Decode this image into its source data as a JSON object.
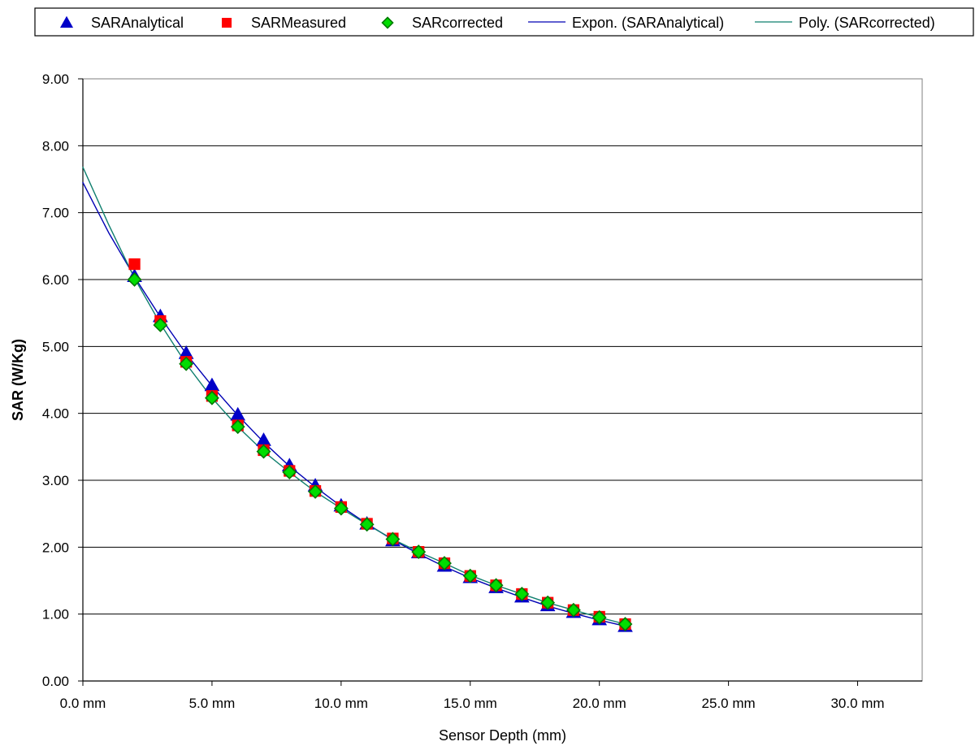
{
  "chart_data": {
    "type": "scatter",
    "title": "",
    "xlabel": "Sensor Depth (mm)",
    "ylabel": "SAR (W/Kg)",
    "xlim": [
      0,
      32.5
    ],
    "ylim": [
      0,
      9
    ],
    "grid": {
      "x": false,
      "y": true
    },
    "legend_placement": "top",
    "x_ticks": [
      0,
      5,
      10,
      15,
      20,
      25,
      30
    ],
    "x_tick_labels": [
      "0.0 mm",
      "5.0 mm",
      "10.0 mm",
      "15.0 mm",
      "20.0 mm",
      "25.0 mm",
      "30.0 mm"
    ],
    "y_ticks": [
      0,
      1,
      2,
      3,
      4,
      5,
      6,
      7,
      8,
      9
    ],
    "y_tick_labels": [
      "0.00",
      "1.00",
      "2.00",
      "3.00",
      "4.00",
      "5.00",
      "6.00",
      "7.00",
      "8.00",
      "9.00"
    ],
    "x": [
      2,
      3,
      4,
      5,
      6,
      7,
      8,
      9,
      10,
      11,
      12,
      13,
      14,
      15,
      16,
      17,
      18,
      19,
      20,
      21
    ],
    "series": [
      {
        "name": "SARAnalytical",
        "kind": "marker",
        "marker": "triangle",
        "color": "#0000C8",
        "values": [
          6.05,
          5.45,
          4.9,
          4.42,
          3.98,
          3.6,
          3.22,
          2.92,
          2.62,
          2.35,
          2.1,
          1.92,
          1.72,
          1.55,
          1.4,
          1.26,
          1.13,
          1.03,
          0.92,
          0.82
        ]
      },
      {
        "name": "SARMeasured",
        "kind": "marker",
        "marker": "square",
        "color": "#FF0000",
        "values": [
          6.23,
          5.38,
          4.77,
          4.26,
          3.82,
          3.45,
          3.14,
          2.84,
          2.6,
          2.35,
          2.13,
          1.93,
          1.76,
          1.57,
          1.43,
          1.3,
          1.17,
          1.06,
          0.96,
          0.85
        ]
      },
      {
        "name": "SARcorrected",
        "kind": "marker",
        "marker": "diamond",
        "color": "#00DD00",
        "stroke": "#007A00",
        "values": [
          6.0,
          5.32,
          4.74,
          4.23,
          3.8,
          3.43,
          3.12,
          2.83,
          2.58,
          2.34,
          2.12,
          1.93,
          1.76,
          1.57,
          1.43,
          1.3,
          1.17,
          1.06,
          0.95,
          0.85
        ]
      },
      {
        "name": "Expon. (SARAnalytical)",
        "kind": "trendline",
        "color": "#0000B4",
        "x": [
          0,
          1,
          2,
          3,
          4,
          5,
          6,
          7,
          8,
          9,
          10,
          11,
          12,
          13,
          14,
          15,
          16,
          17,
          18,
          19,
          20,
          21
        ],
        "values": [
          7.45,
          6.7,
          6.04,
          5.44,
          4.89,
          4.41,
          3.97,
          3.57,
          3.21,
          2.9,
          2.61,
          2.35,
          2.11,
          1.9,
          1.71,
          1.54,
          1.39,
          1.25,
          1.12,
          1.01,
          0.91,
          0.82
        ]
      },
      {
        "name": "Poly. (SARcorrected)",
        "kind": "trendline",
        "color": "#0F7F6E",
        "x": [
          0,
          1,
          2,
          3,
          4,
          5,
          6,
          7,
          8,
          9,
          10,
          11,
          12,
          13,
          14,
          15,
          16,
          17,
          18,
          19,
          20,
          21
        ],
        "values": [
          7.68,
          6.82,
          6.02,
          5.34,
          4.74,
          4.23,
          3.8,
          3.43,
          3.12,
          2.83,
          2.58,
          2.34,
          2.12,
          1.93,
          1.76,
          1.58,
          1.43,
          1.3,
          1.17,
          1.06,
          0.95,
          0.85
        ]
      }
    ],
    "legend_items": [
      {
        "label": "SARAnalytical",
        "kind": "marker",
        "marker": "triangle",
        "color": "#0000C8"
      },
      {
        "label": "SARMeasured",
        "kind": "marker",
        "marker": "square",
        "color": "#FF0000"
      },
      {
        "label": "SARcorrected",
        "kind": "marker",
        "marker": "diamond",
        "color": "#00DD00",
        "stroke": "#007A00"
      },
      {
        "label": "Expon. (SARAnalytical)",
        "kind": "line",
        "color": "#0000B4"
      },
      {
        "label": "Poly. (SARcorrected)",
        "kind": "line",
        "color": "#0F7F6E"
      }
    ]
  }
}
